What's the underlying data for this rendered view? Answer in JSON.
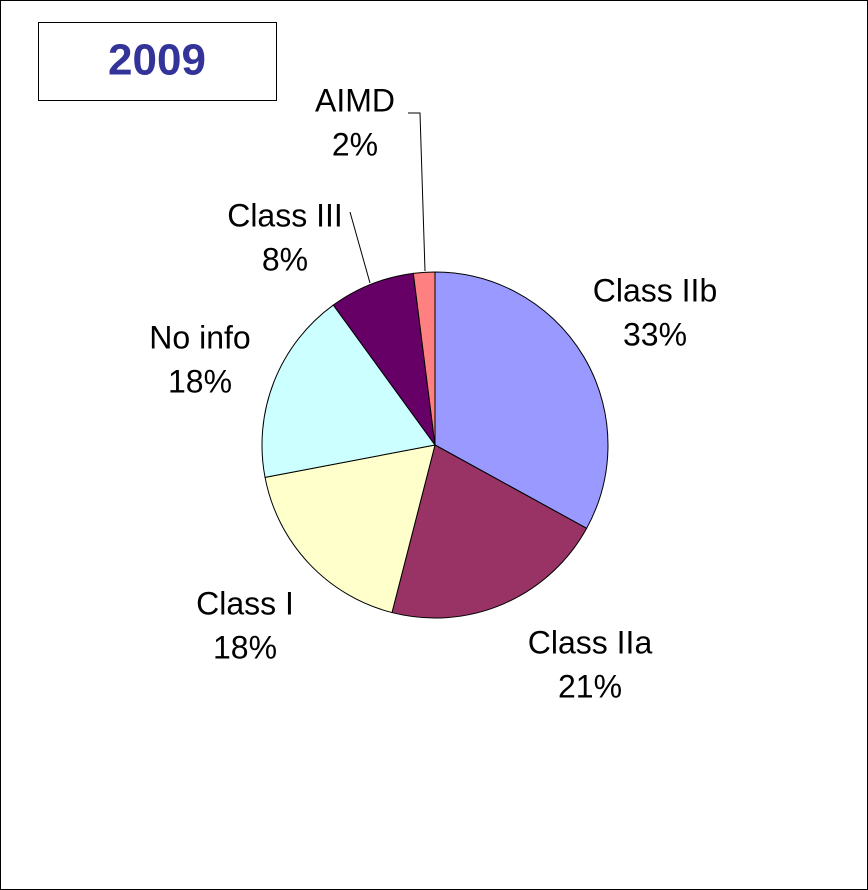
{
  "chart_data": {
    "type": "pie",
    "title": "2009",
    "categories": [
      "Class IIb",
      "Class IIa",
      "Class I",
      "No info",
      "Class III",
      "AIMD"
    ],
    "values": [
      33,
      21,
      18,
      18,
      8,
      2
    ],
    "value_labels": [
      "33%",
      "21%",
      "18%",
      "18%",
      "8%",
      "2%"
    ],
    "colors": [
      "#9999ff",
      "#993366",
      "#ffffcc",
      "#ccffff",
      "#660066",
      "#ff8080"
    ]
  }
}
